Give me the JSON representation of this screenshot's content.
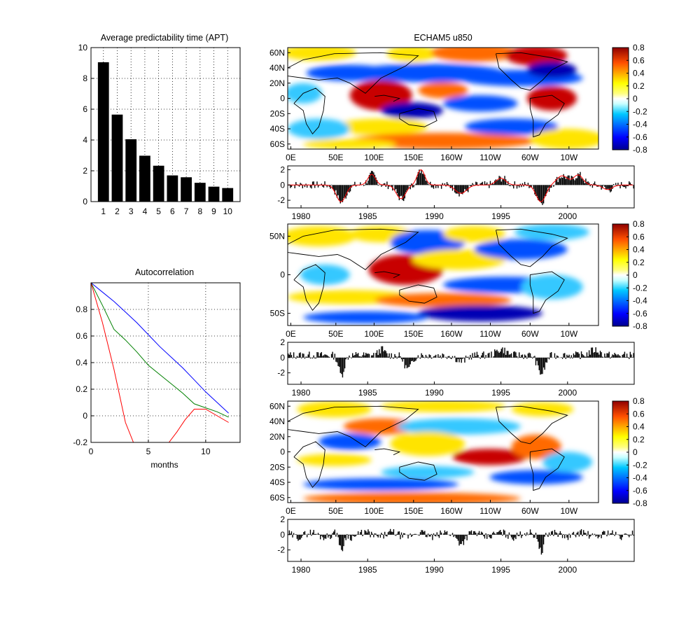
{
  "figure": {
    "map_title": "ECHAM5 u850"
  },
  "chart_data": [
    {
      "id": "apt",
      "type": "bar",
      "title": "Average predictability time (APT)",
      "categories": [
        "1",
        "2",
        "3",
        "4",
        "5",
        "6",
        "7",
        "8",
        "9",
        "10"
      ],
      "values": [
        9.05,
        5.65,
        4.05,
        2.98,
        2.33,
        1.7,
        1.58,
        1.22,
        0.97,
        0.88
      ],
      "ylim": [
        0,
        10
      ],
      "yticks": [
        0,
        2,
        4,
        6,
        8,
        10
      ],
      "grid": true,
      "bar_color": "#000000"
    },
    {
      "id": "autocorrelation",
      "type": "line",
      "title": "Autocorrelation",
      "xlabel": "months",
      "xlim": [
        0,
        13
      ],
      "ylim": [
        -0.2,
        1.0
      ],
      "xticks": [
        0,
        5,
        10
      ],
      "yticks": [
        -0.2,
        0,
        0.2,
        0.4,
        0.6,
        0.8
      ],
      "grid": true,
      "series": [
        {
          "color": "#0000ff",
          "x": [
            0,
            1,
            2,
            3,
            4,
            5,
            6,
            7,
            8,
            9,
            10,
            11,
            12
          ],
          "y": [
            1.0,
            0.93,
            0.86,
            0.78,
            0.7,
            0.61,
            0.52,
            0.44,
            0.36,
            0.27,
            0.18,
            0.1,
            0.02
          ]
        },
        {
          "color": "#008000",
          "x": [
            0,
            1,
            2,
            3,
            4,
            5,
            6,
            7,
            8,
            9,
            10,
            11,
            12
          ],
          "y": [
            1.0,
            0.83,
            0.65,
            0.57,
            0.48,
            0.38,
            0.31,
            0.24,
            0.17,
            0.09,
            0.06,
            0.03,
            -0.01
          ]
        },
        {
          "color": "#ff0000",
          "x": [
            0,
            1,
            2,
            3,
            3.7,
            6.8,
            7.5,
            8.2,
            9,
            10,
            11,
            12
          ],
          "y": [
            1.0,
            0.7,
            0.35,
            -0.05,
            -0.2,
            -0.2,
            -0.12,
            -0.03,
            0.05,
            0.05,
            0.0,
            -0.05
          ]
        }
      ]
    },
    {
      "id": "map1",
      "type": "heatmap",
      "xticks": [
        "0E",
        "50E",
        "100E",
        "150E",
        "160W",
        "110W",
        "60W",
        "10W"
      ],
      "yticks": [
        "60N",
        "40N",
        "20N",
        "0",
        "20S",
        "40S",
        "60S"
      ],
      "colorbar_ticks": [
        "0.8",
        "0.6",
        "0.4",
        "0.2",
        "0",
        "-0.2",
        "-0.4",
        "-0.6",
        "-0.8"
      ]
    },
    {
      "id": "ts1",
      "type": "bar",
      "xlim": [
        1979,
        2005
      ],
      "xticks": [
        "1980",
        "1985",
        "1990",
        "1995",
        "2000"
      ],
      "ylim": [
        -3,
        2.5
      ],
      "yticks": [
        "2",
        "0",
        "-2"
      ],
      "overlay_color": "#ff0000"
    },
    {
      "id": "map2",
      "type": "heatmap",
      "xticks": [
        "0E",
        "50E",
        "100E",
        "150E",
        "160W",
        "110W",
        "60W",
        "10W"
      ],
      "yticks": [
        "50N",
        "0",
        "50S"
      ],
      "colorbar_ticks": [
        "0.8",
        "0.6",
        "0.4",
        "0.2",
        "0",
        "-0.2",
        "-0.4",
        "-0.6",
        "-0.8"
      ]
    },
    {
      "id": "ts2",
      "type": "bar",
      "xlim": [
        1979,
        2005
      ],
      "xticks": [
        "1980",
        "1985",
        "1990",
        "1995",
        "2000"
      ],
      "ylim": [
        -3.5,
        2
      ],
      "yticks": [
        "2",
        "0",
        "-2"
      ]
    },
    {
      "id": "map3",
      "type": "heatmap",
      "xticks": [
        "0E",
        "50E",
        "100E",
        "150E",
        "160W",
        "110W",
        "60W",
        "10W"
      ],
      "yticks": [
        "60N",
        "40N",
        "20N",
        "0",
        "20S",
        "40S",
        "60S"
      ],
      "colorbar_ticks": [
        "0.8",
        "0.6",
        "0.4",
        "0.2",
        "0",
        "-0.2",
        "-0.4",
        "-0.6",
        "-0.8"
      ]
    },
    {
      "id": "ts3",
      "type": "bar",
      "xlim": [
        1979,
        2005
      ],
      "xticks": [
        "1980",
        "1985",
        "1990",
        "1995",
        "2000"
      ],
      "ylim": [
        -3.5,
        2
      ],
      "yticks": [
        "2",
        "0",
        "-2"
      ]
    }
  ]
}
